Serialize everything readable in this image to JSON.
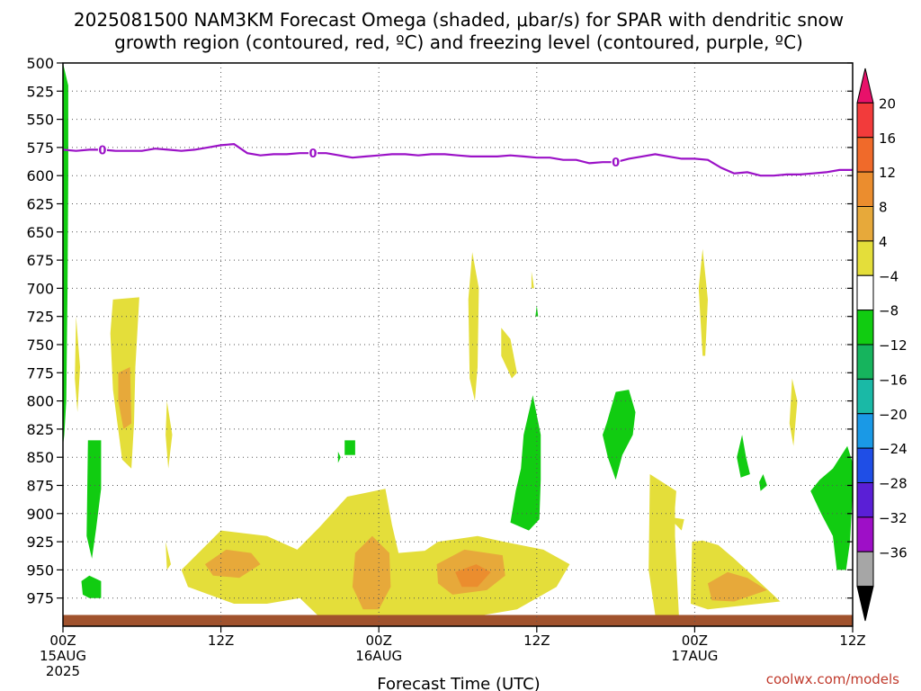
{
  "chart_data": {
    "type": "heatmap",
    "title_lines": [
      "2025081500 NAM3KM Forecast Omega (shaded, μbar/s) for SPAR with dendritic snow",
      "growth region (contoured, red, ºC) and freezing level (contoured, purple, ºC)"
    ],
    "xlabel": "Forecast Time (UTC)",
    "ylabel": "",
    "x_range_hours": [
      0,
      60
    ],
    "y_range_hpa": [
      500,
      1000
    ],
    "y_ticks": [
      500,
      525,
      550,
      575,
      600,
      625,
      650,
      675,
      700,
      725,
      750,
      775,
      800,
      825,
      850,
      875,
      900,
      925,
      950,
      975
    ],
    "x_ticks": [
      {
        "hour": 0,
        "lines": [
          "00Z",
          "15AUG",
          "2025"
        ]
      },
      {
        "hour": 12,
        "lines": [
          "12Z"
        ]
      },
      {
        "hour": 24,
        "lines": [
          "00Z",
          "16AUG"
        ]
      },
      {
        "hour": 36,
        "lines": [
          "12Z"
        ]
      },
      {
        "hour": 48,
        "lines": [
          "00Z",
          "17AUG"
        ]
      },
      {
        "hour": 60,
        "lines": [
          "12Z"
        ]
      }
    ],
    "grid": true,
    "colorbar": {
      "position": "right",
      "labels": [
        "20",
        "16",
        "12",
        "8",
        "4",
        "−4",
        "−8",
        "−12",
        "−16",
        "−20",
        "−24",
        "−28",
        "−32",
        "−36"
      ],
      "bins": [
        {
          "color": "#e8116a"
        },
        {
          "color": "#f23b3b"
        },
        {
          "color": "#f06a2a"
        },
        {
          "color": "#eb8d2e"
        },
        {
          "color": "#e7a93a"
        },
        {
          "color": "#e4de3a"
        },
        {
          "color": "#ffffff"
        },
        {
          "color": "#11cc11"
        },
        {
          "color": "#16b45d"
        },
        {
          "color": "#1ab9a6"
        },
        {
          "color": "#1a99e6"
        },
        {
          "color": "#1f4ee6"
        },
        {
          "color": "#5a1fd6"
        },
        {
          "color": "#9e0fc7"
        },
        {
          "color": "#a6a6a6"
        },
        {
          "color": "#000000"
        }
      ]
    },
    "freezing_level": {
      "color": "#9b12c7",
      "label": "0",
      "label_hours": [
        3,
        19,
        42
      ],
      "points": [
        [
          0,
          577
        ],
        [
          1,
          578
        ],
        [
          2,
          577
        ],
        [
          3,
          577
        ],
        [
          4,
          578
        ],
        [
          5,
          578
        ],
        [
          6,
          578
        ],
        [
          7,
          576
        ],
        [
          8,
          577
        ],
        [
          9,
          578
        ],
        [
          10,
          577
        ],
        [
          11,
          575
        ],
        [
          12,
          573
        ],
        [
          13,
          572
        ],
        [
          14,
          580
        ],
        [
          15,
          582
        ],
        [
          16,
          581
        ],
        [
          17,
          581
        ],
        [
          18,
          580
        ],
        [
          19,
          580
        ],
        [
          20,
          580
        ],
        [
          21,
          582
        ],
        [
          22,
          584
        ],
        [
          23,
          583
        ],
        [
          24,
          582
        ],
        [
          25,
          581
        ],
        [
          26,
          581
        ],
        [
          27,
          582
        ],
        [
          28,
          581
        ],
        [
          29,
          581
        ],
        [
          30,
          582
        ],
        [
          31,
          583
        ],
        [
          32,
          583
        ],
        [
          33,
          583
        ],
        [
          34,
          582
        ],
        [
          35,
          583
        ],
        [
          36,
          584
        ],
        [
          37,
          584
        ],
        [
          38,
          586
        ],
        [
          39,
          586
        ],
        [
          40,
          589
        ],
        [
          41,
          588
        ],
        [
          42,
          588
        ],
        [
          43,
          585
        ],
        [
          44,
          583
        ],
        [
          45,
          581
        ],
        [
          46,
          583
        ],
        [
          47,
          585
        ],
        [
          48,
          585
        ],
        [
          49,
          586
        ],
        [
          50,
          593
        ],
        [
          51,
          598
        ],
        [
          52,
          597
        ],
        [
          53,
          600
        ],
        [
          54,
          600
        ],
        [
          55,
          599
        ],
        [
          56,
          599
        ],
        [
          57,
          598
        ],
        [
          58,
          597
        ],
        [
          59,
          595
        ],
        [
          60,
          595
        ]
      ]
    },
    "omega_regions": [
      {
        "value": 4,
        "color": "#e4de3a",
        "points": [
          [
            3.8,
            710
          ],
          [
            5.8,
            708
          ],
          [
            5.5,
            770
          ],
          [
            5.4,
            820
          ],
          [
            5.2,
            860
          ],
          [
            4.5,
            852
          ],
          [
            3.8,
            790
          ],
          [
            3.6,
            740
          ]
        ]
      },
      {
        "value": 8,
        "color": "#e7a93a",
        "points": [
          [
            4.2,
            775
          ],
          [
            5.1,
            770
          ],
          [
            5.2,
            820
          ],
          [
            4.6,
            825
          ],
          [
            4.2,
            800
          ]
        ]
      },
      {
        "value": 4,
        "color": "#e4de3a",
        "points": [
          [
            1.0,
            725
          ],
          [
            1.3,
            770
          ],
          [
            1.1,
            810
          ],
          [
            0.9,
            780
          ]
        ]
      },
      {
        "value": 4,
        "color": "#e4de3a",
        "points": [
          [
            7.9,
            800
          ],
          [
            8.3,
            830
          ],
          [
            8.0,
            860
          ],
          [
            7.8,
            830
          ]
        ]
      },
      {
        "value": 4,
        "color": "#e4de3a",
        "points": [
          [
            7.8,
            925
          ],
          [
            8.2,
            945
          ],
          [
            7.9,
            950
          ]
        ]
      },
      {
        "value": 4,
        "color": "#e4de3a",
        "points": [
          [
            9.0,
            950
          ],
          [
            12.0,
            915
          ],
          [
            15.5,
            920
          ],
          [
            17.8,
            932
          ],
          [
            19.5,
            912
          ],
          [
            21.6,
            885
          ],
          [
            24.5,
            878
          ],
          [
            25.0,
            910
          ],
          [
            25.5,
            935
          ],
          [
            27.5,
            933
          ],
          [
            28.5,
            925
          ],
          [
            31.5,
            920
          ],
          [
            33.5,
            925
          ],
          [
            36.5,
            932
          ],
          [
            38.5,
            945
          ],
          [
            37.5,
            965
          ],
          [
            34.5,
            985
          ],
          [
            30.5,
            993
          ],
          [
            27.0,
            992
          ],
          [
            24.0,
            990
          ],
          [
            19.5,
            992
          ],
          [
            18.0,
            975
          ],
          [
            15.5,
            980
          ],
          [
            13.0,
            980
          ],
          [
            9.5,
            965
          ]
        ]
      },
      {
        "value": 8,
        "color": "#e7a93a",
        "points": [
          [
            10.8,
            945
          ],
          [
            12.4,
            932
          ],
          [
            14.3,
            935
          ],
          [
            15.0,
            945
          ],
          [
            13.4,
            957
          ],
          [
            11.4,
            955
          ]
        ]
      },
      {
        "value": 8,
        "color": "#e7a93a",
        "points": [
          [
            22.2,
            935
          ],
          [
            23.5,
            920
          ],
          [
            24.8,
            935
          ],
          [
            24.9,
            965
          ],
          [
            24.0,
            985
          ],
          [
            22.8,
            985
          ],
          [
            22.0,
            965
          ]
        ]
      },
      {
        "value": 8,
        "color": "#e7a93a",
        "points": [
          [
            28.4,
            945
          ],
          [
            30.5,
            932
          ],
          [
            33.4,
            937
          ],
          [
            33.6,
            955
          ],
          [
            32.2,
            968
          ],
          [
            29.6,
            972
          ],
          [
            28.5,
            962
          ]
        ]
      },
      {
        "value": 12,
        "color": "#eb8d2e",
        "points": [
          [
            29.8,
            952
          ],
          [
            31.4,
            945
          ],
          [
            32.5,
            952
          ],
          [
            31.5,
            965
          ],
          [
            30.3,
            965
          ]
        ]
      },
      {
        "value": 4,
        "color": "#e4de3a",
        "points": [
          [
            44.6,
            865
          ],
          [
            46.6,
            880
          ],
          [
            46.5,
            895
          ],
          [
            46.5,
            920
          ],
          [
            46.8,
            990
          ],
          [
            45.0,
            990
          ],
          [
            44.5,
            950
          ]
        ]
      },
      {
        "value": 4,
        "color": "#e4de3a",
        "points": [
          [
            46.0,
            903
          ],
          [
            47.2,
            905
          ],
          [
            47.0,
            915
          ]
        ]
      },
      {
        "value": 4,
        "color": "#e4de3a",
        "points": [
          [
            47.8,
            925
          ],
          [
            48.6,
            924
          ],
          [
            49.8,
            928
          ],
          [
            51.0,
            940
          ],
          [
            52.4,
            955
          ],
          [
            53.5,
            967
          ],
          [
            54.5,
            978
          ],
          [
            49.0,
            985
          ],
          [
            47.7,
            980
          ]
        ]
      },
      {
        "value": 8,
        "color": "#e7a93a",
        "points": [
          [
            49.0,
            962
          ],
          [
            50.5,
            952
          ],
          [
            52.0,
            957
          ],
          [
            53.5,
            968
          ],
          [
            51.0,
            978
          ],
          [
            49.3,
            977
          ]
        ]
      },
      {
        "value": 4,
        "color": "#e4de3a",
        "points": [
          [
            31.1,
            668
          ],
          [
            31.6,
            700
          ],
          [
            31.5,
            770
          ],
          [
            31.3,
            800
          ],
          [
            30.9,
            780
          ],
          [
            30.8,
            710
          ]
        ]
      },
      {
        "value": 4,
        "color": "#e4de3a",
        "points": [
          [
            33.3,
            735
          ],
          [
            34.0,
            745
          ],
          [
            34.5,
            775
          ],
          [
            34.1,
            780
          ],
          [
            33.3,
            760
          ]
        ]
      },
      {
        "value": 4,
        "color": "#e4de3a",
        "points": [
          [
            35.6,
            685
          ],
          [
            35.8,
            700
          ],
          [
            35.6,
            700
          ]
        ]
      },
      {
        "value": 4,
        "color": "#e4de3a",
        "points": [
          [
            48.6,
            665
          ],
          [
            49.0,
            710
          ],
          [
            48.8,
            760
          ],
          [
            48.6,
            760
          ],
          [
            48.3,
            700
          ]
        ]
      },
      {
        "value": 4,
        "color": "#e4de3a",
        "points": [
          [
            55.4,
            780
          ],
          [
            55.8,
            800
          ],
          [
            55.5,
            840
          ],
          [
            55.2,
            820
          ]
        ]
      },
      {
        "value": -4,
        "color": "#11cc11",
        "points": [
          [
            0.0,
            500
          ],
          [
            0.4,
            520
          ],
          [
            0.4,
            600
          ],
          [
            0.35,
            700
          ],
          [
            0.25,
            800
          ],
          [
            0.1,
            830
          ],
          [
            0.0,
            840
          ]
        ]
      },
      {
        "value": -4,
        "color": "#11cc11",
        "points": [
          [
            1.9,
            835
          ],
          [
            2.9,
            835
          ],
          [
            2.9,
            878
          ],
          [
            2.5,
            915
          ],
          [
            2.2,
            940
          ],
          [
            1.8,
            920
          ]
        ]
      },
      {
        "value": -4,
        "color": "#11cc11",
        "points": [
          [
            1.4,
            960
          ],
          [
            2.0,
            955
          ],
          [
            2.9,
            960
          ],
          [
            2.9,
            975
          ],
          [
            2.0,
            975
          ],
          [
            1.5,
            972
          ]
        ]
      },
      {
        "value": -4,
        "color": "#11cc11",
        "points": [
          [
            21.4,
            835
          ],
          [
            22.2,
            835
          ],
          [
            22.2,
            848
          ],
          [
            21.4,
            848
          ]
        ]
      },
      {
        "value": -4,
        "color": "#11cc11",
        "points": [
          [
            20.9,
            845
          ],
          [
            21.1,
            850
          ],
          [
            20.9,
            855
          ]
        ]
      },
      {
        "value": -4,
        "color": "#11cc11",
        "points": [
          [
            35.7,
            795
          ],
          [
            36.3,
            830
          ],
          [
            36.3,
            870
          ],
          [
            36.2,
            905
          ],
          [
            35.4,
            915
          ],
          [
            34.0,
            908
          ],
          [
            34.4,
            880
          ],
          [
            34.8,
            860
          ],
          [
            35.0,
            830
          ]
        ]
      },
      {
        "value": -4,
        "color": "#11cc11",
        "points": [
          [
            36.0,
            715
          ],
          [
            36.1,
            725
          ],
          [
            35.9,
            725
          ]
        ]
      },
      {
        "value": -4,
        "color": "#11cc11",
        "points": [
          [
            41.3,
            820
          ],
          [
            42.0,
            792
          ],
          [
            43.0,
            790
          ],
          [
            43.5,
            810
          ],
          [
            43.3,
            830
          ],
          [
            42.5,
            848
          ],
          [
            42.0,
            870
          ],
          [
            41.4,
            850
          ],
          [
            41.0,
            830
          ]
        ]
      },
      {
        "value": -4,
        "color": "#11cc11",
        "points": [
          [
            51.6,
            830
          ],
          [
            51.9,
            850
          ],
          [
            52.2,
            865
          ],
          [
            51.5,
            868
          ],
          [
            51.2,
            850
          ]
        ]
      },
      {
        "value": -4,
        "color": "#11cc11",
        "points": [
          [
            53.2,
            865
          ],
          [
            53.5,
            875
          ],
          [
            53.0,
            880
          ],
          [
            52.9,
            872
          ]
        ]
      },
      {
        "value": -4,
        "color": "#11cc11",
        "points": [
          [
            58.5,
            860
          ],
          [
            59.6,
            840
          ],
          [
            60.0,
            855
          ],
          [
            60.0,
            880
          ],
          [
            59.8,
            925
          ],
          [
            59.5,
            950
          ],
          [
            58.8,
            950
          ],
          [
            58.5,
            920
          ],
          [
            57.6,
            900
          ],
          [
            56.8,
            880
          ],
          [
            57.5,
            870
          ]
        ]
      }
    ],
    "ground": {
      "color": "#a0522d",
      "top_hpa": 990
    }
  },
  "credit": "coolwx.com/models"
}
